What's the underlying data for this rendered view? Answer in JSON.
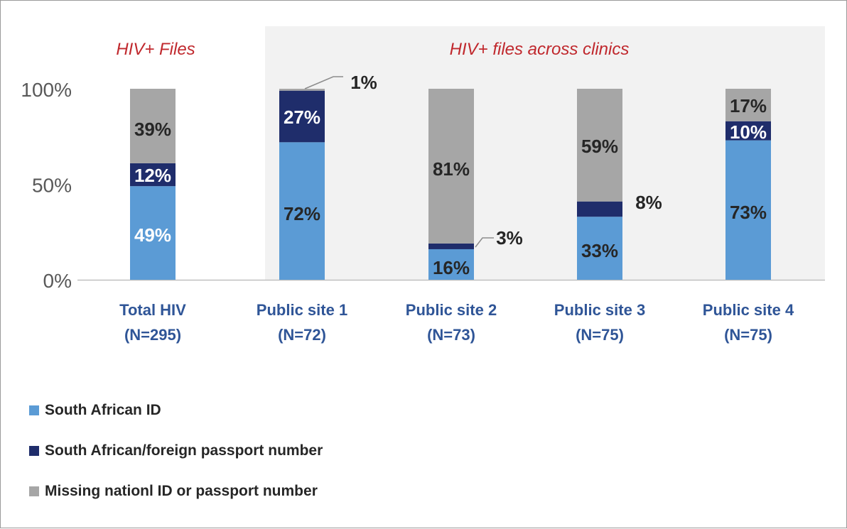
{
  "chart_data": {
    "type": "bar",
    "stacked": true,
    "percent_stacked": true,
    "section_titles": [
      "HIV+ Files",
      "HIV+ files across clinics"
    ],
    "categories": [
      [
        "Total HIV",
        "(N=295)"
      ],
      [
        "Public site 1",
        "(N=72)"
      ],
      [
        "Public site 2",
        "(N=73)"
      ],
      [
        "Public site 3",
        "(N=75)"
      ],
      [
        "Public site 4",
        "(N=75)"
      ]
    ],
    "series": [
      {
        "name": "South African ID",
        "color": "#5b9bd5",
        "values": [
          49,
          72,
          16,
          33,
          73
        ],
        "labels": [
          "49%",
          "72%",
          "16%",
          "33%",
          "73%"
        ]
      },
      {
        "name": "South African/foreign passport number",
        "color": "#1f2d6b",
        "values": [
          12,
          27,
          3,
          8,
          10
        ],
        "labels": [
          "12%",
          "27%",
          "3%",
          "8%",
          "10%"
        ]
      },
      {
        "name": "Missing nationl ID or passport number",
        "color": "#a6a6a6",
        "values": [
          39,
          1,
          81,
          59,
          17
        ],
        "labels": [
          "39%",
          "1%",
          "81%",
          "59%",
          "17%"
        ]
      }
    ],
    "y_ticks": [
      "0%",
      "50%",
      "100%"
    ],
    "ylim": [
      0,
      100
    ],
    "grid": false,
    "legend_position": "bottom-left",
    "title_color": "#c0282d",
    "category_label_color": "#2f5597",
    "shaded_region_color": "#f2f2f2"
  }
}
